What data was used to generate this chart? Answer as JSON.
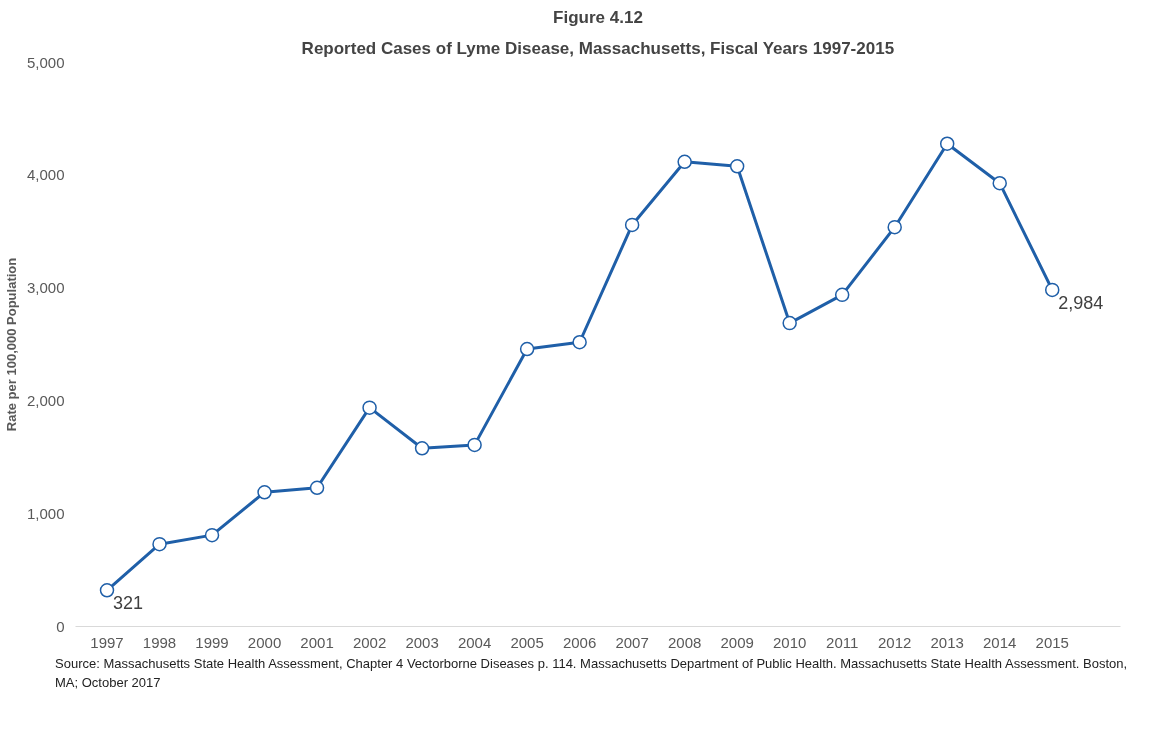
{
  "chart_data": {
    "type": "line",
    "title": "Figure 4.12",
    "subtitle": "Reported Cases of Lyme Disease, Massachusetts, Fiscal Years 1997-2015",
    "ylabel": "Rate per 100,000 Population",
    "categories": [
      "1997",
      "1998",
      "1999",
      "2000",
      "2001",
      "2002",
      "2003",
      "2004",
      "2005",
      "2006",
      "2007",
      "2008",
      "2009",
      "2010",
      "2011",
      "2012",
      "2013",
      "2014",
      "2015"
    ],
    "series": [
      {
        "color": "#1f5fa8",
        "values": [
          321,
          730,
          810,
          1190,
          1230,
          1940,
          1580,
          1610,
          2460,
          2520,
          3560,
          4120,
          4080,
          2690,
          2940,
          3540,
          4280,
          3930,
          2984
        ],
        "value_labels": [
          "321",
          null,
          null,
          null,
          null,
          null,
          null,
          null,
          null,
          null,
          null,
          null,
          null,
          null,
          null,
          null,
          null,
          null,
          "2,984"
        ]
      }
    ],
    "ylim": [
      0,
      5000
    ],
    "yticks": [
      {
        "value": 0,
        "label": "0"
      },
      {
        "value": 1000,
        "label": "1,000"
      },
      {
        "value": 2000,
        "label": "2,000"
      },
      {
        "value": 3000,
        "label": "3,000"
      },
      {
        "value": 4000,
        "label": "4,000"
      },
      {
        "value": 5000,
        "label": "5,000"
      }
    ],
    "grid": false,
    "marker": "circle",
    "line_style": "solid",
    "annotations": [
      "Source: Massachusetts State Health Assessment, Chapter 4 Vectorborne Diseases p. 114.  Massachusetts Department of Public Health. Massachusetts State Health Assessment. Boston, MA; October 2017"
    ]
  }
}
